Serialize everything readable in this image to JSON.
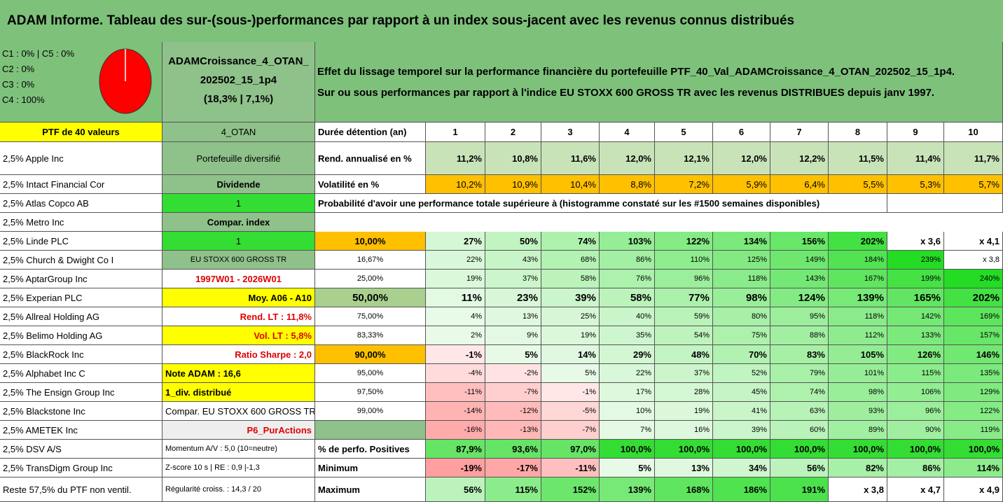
{
  "title": "ADAM Informe. Tableau des sur-(sous-)performances par rapport à un index sous-jacent avec les revenus connus distribués",
  "allocation": {
    "lines": [
      "C1 : 0% | C5 : 0%",
      "C2 : 0%",
      "C3 : 0%",
      "C4 : 100%"
    ],
    "pie_share": 1.0,
    "pie_color": "#ff0000"
  },
  "fund": {
    "name_line1": "ADAMCroissance_4_OTAN_",
    "name_line2": "202502_15_1p4",
    "stats": "(18,3% | 7,1%)"
  },
  "description": {
    "line1": "Effet du lissage temporel sur la performance financière du portefeuille PTF_40_Val_ADAMCroissance_4_OTAN_202502_15_1p4.",
    "line2": "Sur ou sous performances par rapport à l'indice EU STOXX 600 GROSS TR avec les revenus DISTRIBUES depuis janv 1997."
  },
  "portfolio_header": "PTF de 40 valeurs",
  "holdings": [
    "2,5% Apple Inc",
    "2,5% Intact Financial Cor",
    "2,5% Atlas Copco AB",
    "2,5% Metro Inc",
    "2,5% Linde PLC",
    "2,5% Church & Dwight Co I",
    "2,5% AptarGroup Inc",
    "2,5% Experian PLC",
    "2,5% Allreal Holding AG",
    "2,5% Belimo Holding AG",
    "2,5% BlackRock Inc",
    "2,5% Alphabet Inc C",
    "2,5% The Ensign Group Inc",
    "2,5% Blackstone Inc",
    "2,5% AMETEK Inc",
    "2,5% DSV A/S",
    "2,5% TransDigm Group Inc",
    "Reste 57,5% du PTF non ventil."
  ],
  "info_column": [
    "4_OTAN",
    "Portefeuille diversifié",
    "Dividende",
    "1",
    "Compar. index",
    "1",
    "EU STOXX 600 GROSS TR",
    "1997W01 - 2026W01",
    "Moy. A06 - A10",
    "Rend. LT : 11,8%",
    "Vol. LT : 5,8%",
    "Ratio Sharpe : 2,0",
    "Note ADAM : 16,6",
    "1_div. distribué",
    "Compar. EU STOXX 600 GROSS TR",
    "P6_PurActions",
    "Momentum A/V : 5,0 (10=neutre)",
    "Z-score 10 s | RE : 0,9 |-1,3",
    "Régularité croiss. : 14,3 / 20"
  ],
  "table": {
    "duration_label": "Durée détention (an)",
    "years": [
      "1",
      "2",
      "3",
      "4",
      "5",
      "6",
      "7",
      "8",
      "9",
      "10"
    ],
    "rend_label": "Rend. annualisé en %",
    "rend": [
      "11,2%",
      "10,8%",
      "11,6%",
      "12,0%",
      "12,1%",
      "12,0%",
      "12,2%",
      "11,5%",
      "11,4%",
      "11,7%"
    ],
    "vol_label": "Volatilité en %",
    "vol": [
      "10,2%",
      "10,9%",
      "10,4%",
      "8,8%",
      "7,2%",
      "5,9%",
      "6,4%",
      "5,5%",
      "5,3%",
      "5,7%"
    ],
    "prob_title": "Probabilité d'avoir une performance totale supérieure à (histogramme constaté sur les #1500 semaines disponibles)",
    "prob_rows": [
      {
        "pct": "10,00%",
        "values": [
          "27%",
          "50%",
          "74%",
          "103%",
          "122%",
          "134%",
          "156%",
          "202%",
          "x 3,6",
          "x 4,1"
        ]
      },
      {
        "pct": "16,67%",
        "values": [
          "22%",
          "43%",
          "68%",
          "86%",
          "110%",
          "125%",
          "149%",
          "184%",
          "239%",
          "x 3,8"
        ]
      },
      {
        "pct": "25,00%",
        "values": [
          "19%",
          "37%",
          "58%",
          "76%",
          "96%",
          "118%",
          "143%",
          "167%",
          "199%",
          "240%"
        ]
      },
      {
        "pct": "50,00%",
        "values": [
          "11%",
          "23%",
          "39%",
          "58%",
          "77%",
          "98%",
          "124%",
          "139%",
          "165%",
          "202%"
        ]
      },
      {
        "pct": "75,00%",
        "values": [
          "4%",
          "13%",
          "25%",
          "40%",
          "59%",
          "80%",
          "95%",
          "118%",
          "142%",
          "169%"
        ]
      },
      {
        "pct": "83,33%",
        "values": [
          "2%",
          "9%",
          "19%",
          "35%",
          "54%",
          "75%",
          "88%",
          "112%",
          "133%",
          "157%"
        ]
      },
      {
        "pct": "90,00%",
        "values": [
          "-1%",
          "5%",
          "14%",
          "29%",
          "48%",
          "70%",
          "83%",
          "105%",
          "126%",
          "146%"
        ]
      },
      {
        "pct": "95,00%",
        "values": [
          "-4%",
          "-2%",
          "5%",
          "22%",
          "37%",
          "52%",
          "79%",
          "101%",
          "115%",
          "135%"
        ]
      },
      {
        "pct": "97,50%",
        "values": [
          "-11%",
          "-7%",
          "-1%",
          "17%",
          "28%",
          "45%",
          "74%",
          "98%",
          "106%",
          "129%"
        ]
      },
      {
        "pct": "99,00%",
        "values": [
          "-14%",
          "-12%",
          "-5%",
          "10%",
          "19%",
          "41%",
          "63%",
          "93%",
          "96%",
          "122%"
        ]
      },
      {
        "pct": "99,50%",
        "values": [
          "-16%",
          "-13%",
          "-7%",
          "7%",
          "16%",
          "39%",
          "60%",
          "89%",
          "90%",
          "119%"
        ]
      }
    ],
    "positive_label": "% de perfo. Positives",
    "positive": [
      "87,9%",
      "93,6%",
      "97,0%",
      "100,0%",
      "100,0%",
      "100,0%",
      "100,0%",
      "100,0%",
      "100,0%",
      "100,0%"
    ],
    "min_label": "Minimum",
    "min": [
      "-19%",
      "-17%",
      "-11%",
      "5%",
      "13%",
      "34%",
      "56%",
      "82%",
      "86%",
      "114%"
    ],
    "max_label": "Maximum",
    "max": [
      "56%",
      "115%",
      "152%",
      "139%",
      "168%",
      "186%",
      "191%",
      "x 3,8",
      "x 4,7",
      "x 4,9"
    ]
  },
  "colors": {
    "header_green": "#7ec17b",
    "mid_green": "#8fc18a",
    "bright_green": "#33dd33",
    "yellow": "#ffff00",
    "orange": "#ffc000",
    "light_green": "#c9e3b9"
  }
}
